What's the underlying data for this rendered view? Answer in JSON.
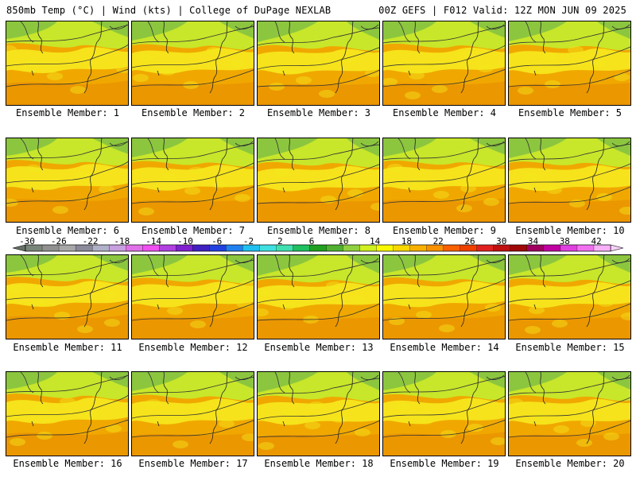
{
  "header": {
    "left": "850mb Temp (°C) | Wind (kts) | College of DuPage NEXLAB",
    "right": "00Z GEFS | F012 Valid: 12Z MON JUN 09 2025"
  },
  "map": {
    "field": "850mb Temp (°C)",
    "panels": [
      {
        "member": 1,
        "label": "Ensemble Member: 1"
      },
      {
        "member": 2,
        "label": "Ensemble Member: 2"
      },
      {
        "member": 3,
        "label": "Ensemble Member: 3"
      },
      {
        "member": 4,
        "label": "Ensemble Member: 4"
      },
      {
        "member": 5,
        "label": "Ensemble Member: 5"
      },
      {
        "member": 6,
        "label": "Ensemble Member: 6"
      },
      {
        "member": 7,
        "label": "Ensemble Member: 7"
      },
      {
        "member": 8,
        "label": "Ensemble Member: 8"
      },
      {
        "member": 9,
        "label": "Ensemble Member: 9"
      },
      {
        "member": 10,
        "label": "Ensemble Member: 10"
      },
      {
        "member": 11,
        "label": "Ensemble Member: 11"
      },
      {
        "member": 12,
        "label": "Ensemble Member: 12"
      },
      {
        "member": 13,
        "label": "Ensemble Member: 13"
      },
      {
        "member": 14,
        "label": "Ensemble Member: 14"
      },
      {
        "member": 15,
        "label": "Ensemble Member: 15"
      },
      {
        "member": 16,
        "label": "Ensemble Member: 16"
      },
      {
        "member": 17,
        "label": "Ensemble Member: 17"
      },
      {
        "member": 18,
        "label": "Ensemble Member: 18"
      },
      {
        "member": 19,
        "label": "Ensemble Member: 19"
      },
      {
        "member": 20,
        "label": "Ensemble Member: 20"
      }
    ]
  },
  "legend": {
    "tick_labels": [
      "-30",
      "-26",
      "-22",
      "-18",
      "-14",
      "-10",
      "-6",
      "-2",
      "2",
      "6",
      "10",
      "14",
      "18",
      "22",
      "26",
      "30",
      "34",
      "38",
      "42"
    ],
    "colors": [
      "#7a857a",
      "#909090",
      "#a8a8a8",
      "#8a8a9a",
      "#b0b0c8",
      "#c8a0e0",
      "#e070e8",
      "#f050f0",
      "#b040e0",
      "#8020d0",
      "#4020c0",
      "#2040e0",
      "#2080f0",
      "#20c0f0",
      "#40e0e0",
      "#40e0b0",
      "#20c060",
      "#20a020",
      "#50b030",
      "#90d040",
      "#d0f020",
      "#f8f800",
      "#f8d800",
      "#f8b000",
      "#f89000",
      "#f86000",
      "#f04000",
      "#e02020",
      "#c01010",
      "#a00808",
      "#a00060",
      "#c000a0",
      "#e040e0",
      "#f070f0",
      "#f8b0f8"
    ],
    "arrow_colors": [
      "#667066",
      "#f8d0f8"
    ]
  },
  "palette": {
    "map_green": "#8cc63f",
    "map_yellowgreen": "#c8e62a",
    "map_yellow": "#f5e61c",
    "map_orange": "#f0a800",
    "map_darkorange": "#e89000"
  }
}
